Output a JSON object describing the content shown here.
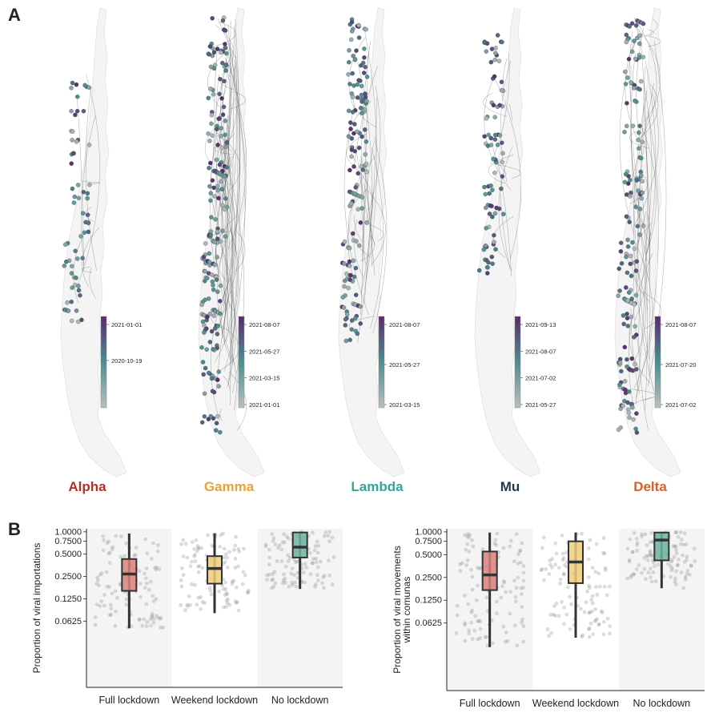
{
  "panel_labels": {
    "a": "A",
    "b": "B"
  },
  "colors": {
    "low": "#b9b9b9",
    "mid": "#4b8f90",
    "high": "#5b2a6e",
    "alpha": "#b2302a",
    "gamma": "#e6a23c",
    "lambda": "#3aa39a",
    "mu": "#1d3a4c",
    "delta": "#d3622d",
    "box_full": "#d9817c",
    "box_weekend": "#eecc7a",
    "box_none": "#6fb5a2"
  },
  "maps": [
    {
      "name": "Alpha",
      "color_key": "alpha",
      "color_ticks": [
        "2021-01-01",
        "2020-10-19"
      ]
    },
    {
      "name": "Gamma",
      "color_key": "gamma",
      "color_ticks": [
        "2021-08-07",
        "2021-05-27",
        "2021-03-15",
        "2021-01-01"
      ]
    },
    {
      "name": "Lambda",
      "color_key": "lambda",
      "color_ticks": [
        "2021-08-07",
        "2021-05-27",
        "2021-03-15"
      ]
    },
    {
      "name": "Mu",
      "color_key": "mu",
      "color_ticks": [
        "2021-09-13",
        "2021-08-07",
        "2021-07-02",
        "2021-05-27"
      ]
    },
    {
      "name": "Delta",
      "color_key": "delta",
      "color_ticks": [
        "2021-08-07",
        "2021-07-20",
        "2021-07-02"
      ]
    }
  ],
  "chart_data": [
    {
      "type": "box",
      "ylabel": "Proportion of viral importations",
      "categories": [
        "Full lockdown",
        "Weekend lockdown",
        "No lockdown"
      ],
      "yscale": "log2",
      "yticks": [
        "1.0000",
        "0.7500",
        "0.5000",
        "0.2500",
        "0.1250",
        "0.0625"
      ],
      "ytick_values": [
        1.0,
        0.75,
        0.5,
        0.25,
        0.125,
        0.0625
      ],
      "ylim": [
        0.008,
        1.1
      ],
      "boxes": [
        {
          "category": "Full lockdown",
          "min": 0.05,
          "q1": 0.16,
          "median": 0.27,
          "q3": 0.43,
          "max": 0.95
        },
        {
          "category": "Weekend lockdown",
          "min": 0.08,
          "q1": 0.2,
          "median": 0.32,
          "q3": 0.47,
          "max": 0.95
        },
        {
          "category": "No lockdown",
          "min": 0.17,
          "q1": 0.45,
          "median": 0.62,
          "q3": 0.98,
          "max": 1.0
        }
      ]
    },
    {
      "type": "box",
      "ylabel": "Proportion of viral movements\nwithin comunas",
      "categories": [
        "Full lockdown",
        "Weekend lockdown",
        "No lockdown"
      ],
      "yscale": "log2",
      "yticks": [
        "1.0000",
        "0.7500",
        "0.5000",
        "0.2500",
        "0.1250",
        "0.0625"
      ],
      "ytick_values": [
        1.0,
        0.75,
        0.5,
        0.25,
        0.125,
        0.0625
      ],
      "ylim": [
        0.008,
        1.1
      ],
      "boxes": [
        {
          "category": "Full lockdown",
          "min": 0.03,
          "q1": 0.17,
          "median": 0.27,
          "q3": 0.55,
          "max": 0.98
        },
        {
          "category": "Weekend lockdown",
          "min": 0.04,
          "q1": 0.21,
          "median": 0.4,
          "q3": 0.75,
          "max": 0.98
        },
        {
          "category": "No lockdown",
          "min": 0.18,
          "q1": 0.42,
          "median": 0.78,
          "q3": 0.98,
          "max": 1.0
        }
      ]
    }
  ]
}
